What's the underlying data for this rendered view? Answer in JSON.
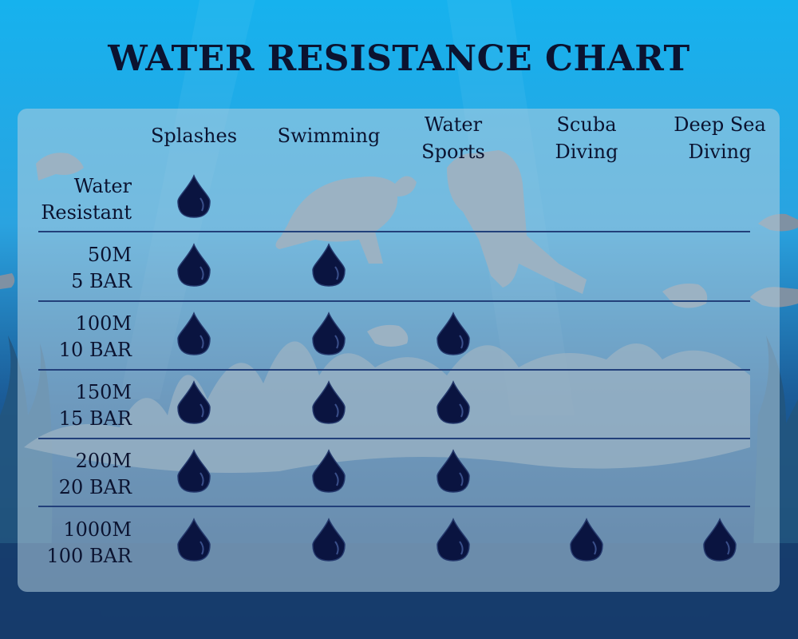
{
  "chart_data": {
    "type": "table",
    "title": "WATER RESISTANCE CHART",
    "columns": [
      "Splashes",
      "Swimming",
      "Water\nSports",
      "Scuba\nDiving",
      "Deep Sea\nDiving"
    ],
    "rows": [
      {
        "label": "Water\nResistant",
        "values": [
          1,
          0,
          0,
          0,
          0
        ]
      },
      {
        "label": "50M\n5 BAR",
        "values": [
          1,
          1,
          0,
          0,
          0
        ]
      },
      {
        "label": "100M\n10 BAR",
        "values": [
          1,
          1,
          1,
          0,
          0
        ]
      },
      {
        "label": "150M\n15 BAR",
        "values": [
          1,
          1,
          1,
          0,
          0
        ]
      },
      {
        "label": "200M\n20 BAR",
        "values": [
          1,
          1,
          1,
          0,
          0
        ]
      },
      {
        "label": "1000M\n100 BAR",
        "values": [
          1,
          1,
          1,
          1,
          1
        ]
      }
    ]
  },
  "colors": {
    "background_top": "#17b4ee",
    "background_bottom": "#0d3163",
    "silhouette": "#7f91a3",
    "drop": "#0a1440",
    "separator": "#22407a",
    "text": "#0b1330"
  },
  "icons": {
    "drop": "water-drop-icon"
  }
}
